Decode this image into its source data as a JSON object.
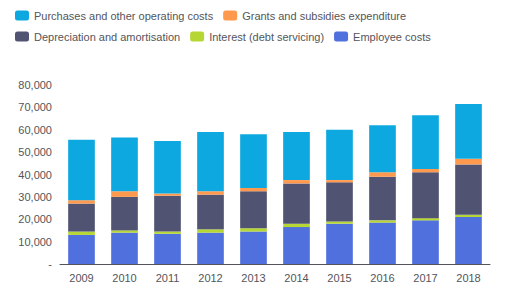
{
  "chart_data": {
    "type": "bar",
    "stacked": true,
    "grid": false,
    "legend": "upper left",
    "categories": [
      "2009",
      "2010",
      "2011",
      "2012",
      "2013",
      "2014",
      "2015",
      "2016",
      "2017",
      "2018"
    ],
    "series": [
      {
        "name": "Employee costs",
        "values": [
          13000,
          14000,
          13500,
          14000,
          14500,
          16500,
          18000,
          18500,
          19500,
          21000
        ]
      },
      {
        "name": "Interest (debt servicing)",
        "values": [
          1500,
          1000,
          1000,
          1500,
          1500,
          1500,
          1000,
          1000,
          1000,
          1000
        ]
      },
      {
        "name": "Depreciation and amortisation",
        "values": [
          12500,
          15000,
          16000,
          15500,
          16500,
          18000,
          17500,
          19500,
          20500,
          22500
        ]
      },
      {
        "name": "Grants and subsidies expenditure",
        "values": [
          1500,
          2500,
          1000,
          1500,
          1500,
          1500,
          1000,
          2000,
          1500,
          2500
        ]
      },
      {
        "name": "Purchases and other operating costs",
        "values": [
          27000,
          24000,
          23500,
          26500,
          24000,
          21500,
          22500,
          21000,
          24000,
          24500
        ]
      }
    ],
    "ylim": [
      0,
      80000
    ],
    "yticks": [
      {
        "value": 0,
        "label": "-"
      },
      {
        "value": 10000,
        "label": "10,000"
      },
      {
        "value": 20000,
        "label": "20,000"
      },
      {
        "value": 30000,
        "label": "30,000"
      },
      {
        "value": 40000,
        "label": "40,000"
      },
      {
        "value": 50000,
        "label": "50,000"
      },
      {
        "value": 60000,
        "label": "60,000"
      },
      {
        "value": 70000,
        "label": "70,000"
      },
      {
        "value": 80000,
        "label": "80,000"
      }
    ]
  }
}
